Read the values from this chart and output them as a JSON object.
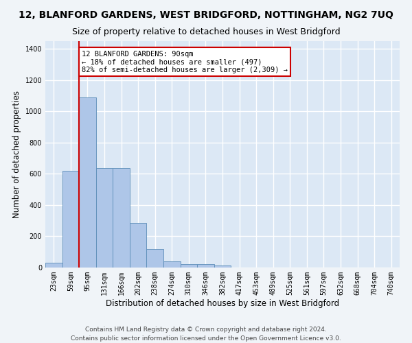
{
  "title": "12, BLANFORD GARDENS, WEST BRIDGFORD, NOTTINGHAM, NG2 7UQ",
  "subtitle": "Size of property relative to detached houses in West Bridgford",
  "xlabel": "Distribution of detached houses by size in West Bridgford",
  "ylabel": "Number of detached properties",
  "categories": [
    "23sqm",
    "59sqm",
    "95sqm",
    "131sqm",
    "166sqm",
    "202sqm",
    "238sqm",
    "274sqm",
    "310sqm",
    "346sqm",
    "382sqm",
    "417sqm",
    "453sqm",
    "489sqm",
    "525sqm",
    "561sqm",
    "597sqm",
    "632sqm",
    "668sqm",
    "704sqm",
    "740sqm"
  ],
  "values": [
    30,
    620,
    1090,
    635,
    635,
    285,
    120,
    40,
    22,
    22,
    12,
    0,
    0,
    0,
    0,
    0,
    0,
    0,
    0,
    0,
    0
  ],
  "bar_color": "#aec6e8",
  "bar_edge_color": "#5b8db8",
  "ylim": [
    0,
    1450
  ],
  "yticks": [
    0,
    200,
    400,
    600,
    800,
    1000,
    1200,
    1400
  ],
  "red_line_index": 2,
  "annotation_title": "12 BLANFORD GARDENS: 90sqm",
  "annotation_line1": "← 18% of detached houses are smaller (497)",
  "annotation_line2": "82% of semi-detached houses are larger (2,309) →",
  "annotation_box_facecolor": "#ffffff",
  "annotation_box_edgecolor": "#cc0000",
  "footer_line1": "Contains HM Land Registry data © Crown copyright and database right 2024.",
  "footer_line2": "Contains public sector information licensed under the Open Government Licence v3.0.",
  "fig_facecolor": "#f0f4f8",
  "plot_facecolor": "#dce8f5",
  "grid_color": "#ffffff",
  "title_fontsize": 10,
  "subtitle_fontsize": 9,
  "axis_label_fontsize": 8.5,
  "tick_fontsize": 7,
  "footer_fontsize": 6.5,
  "annotation_fontsize": 7.5
}
